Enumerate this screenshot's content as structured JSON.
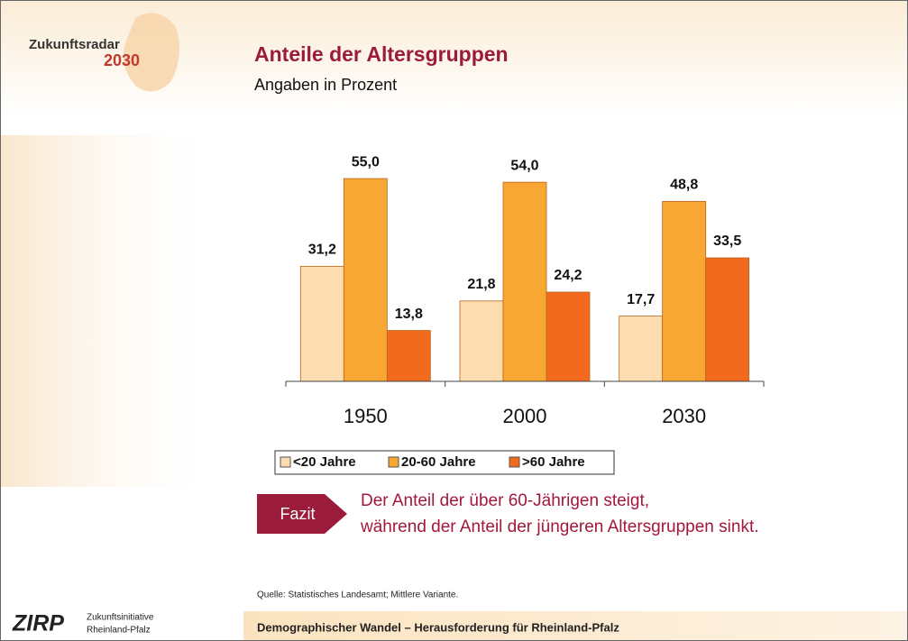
{
  "header": {
    "logo_text": "Zukunftsradar",
    "logo_year": "2030"
  },
  "chart_data": {
    "type": "bar",
    "title": "Anteile der Altersgruppen",
    "subtitle": "Angaben in Prozent",
    "categories": [
      "1950",
      "2000",
      "2030"
    ],
    "series": [
      {
        "name": "<20 Jahre",
        "color": "#fddcb0",
        "values": [
          31.2,
          21.8,
          17.7
        ],
        "value_labels": [
          "31,2",
          "21,8",
          "17,7"
        ]
      },
      {
        "name": "20-60 Jahre",
        "color": "#f8a832",
        "values": [
          55.0,
          54.0,
          48.8
        ],
        "value_labels": [
          "55,0",
          "54,0",
          "48,8"
        ]
      },
      {
        "name": ">60 Jahre",
        "color": "#f26a1e",
        "values": [
          13.8,
          24.2,
          33.5
        ],
        "value_labels": [
          "13,8",
          "24,2",
          "33,5"
        ]
      }
    ]
  },
  "fazit": {
    "label": "Fazit",
    "lines": [
      "Der Anteil der über 60-Jährigen steigt,",
      "während der Anteil der jüngeren Altersgruppen sinkt."
    ]
  },
  "source": "Quelle: Statistisches Landesamt; Mittlere Variante.",
  "footer": {
    "text": "Demographischer Wandel – Herausforderung für Rheinland-Pfalz",
    "logo": "ZIRP",
    "org_lines": [
      "Zukunftsinitiative",
      "Rheinland-Pfalz"
    ]
  }
}
